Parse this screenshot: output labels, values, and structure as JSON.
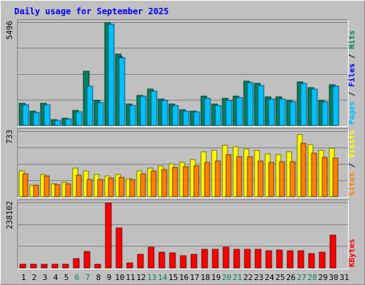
{
  "chart_data": {
    "type": "bar",
    "title": "Daily usage for September 2025",
    "days": [
      "1",
      "2",
      "3",
      "4",
      "5",
      "6",
      "7",
      "8",
      "9",
      "10",
      "11",
      "12",
      "13",
      "14",
      "15",
      "16",
      "17",
      "18",
      "19",
      "20",
      "21",
      "22",
      "23",
      "24",
      "25",
      "26",
      "27",
      "28",
      "29",
      "30",
      "31"
    ],
    "weekend_days": [
      "6",
      "7",
      "13",
      "14",
      "20",
      "21",
      "27",
      "28"
    ],
    "panels": [
      {
        "id": "hits",
        "max_label": "5496",
        "ymax": 5496,
        "series": [
          {
            "name": "Hits",
            "color": "#00805C",
            "values": [
              1180,
              760,
              1180,
              310,
              380,
              780,
              2880,
              1310,
              5460,
              3800,
              1150,
              1600,
              1920,
              1400,
              1150,
              850,
              750,
              1560,
              1140,
              1440,
              1560,
              2360,
              2230,
              1520,
              1500,
              1320,
              2300,
              2000,
              1330,
              2160,
              0
            ]
          },
          {
            "name": "Files",
            "color": "#0000FF",
            "values": [
              1080,
              700,
              1080,
              260,
              330,
              700,
              2050,
              1200,
              5400,
              3640,
              1050,
              1500,
              1800,
              1300,
              1050,
              750,
              700,
              1420,
              1020,
              1320,
              1440,
              2260,
              2120,
              1400,
              1380,
              1220,
              2200,
              1900,
              1240,
              2060,
              0
            ]
          },
          {
            "name": "Pages",
            "color": "#00C0FF",
            "values": [
              1100,
              700,
              1100,
              270,
              340,
              720,
              2080,
              1220,
              5380,
              3600,
              1060,
              1540,
              1820,
              1320,
              1060,
              760,
              730,
              1440,
              1060,
              1340,
              1480,
              2280,
              2140,
              1420,
              1400,
              1240,
              2240,
              1940,
              1260,
              2100,
              0
            ]
          }
        ]
      },
      {
        "id": "visits",
        "max_label": "733",
        "ymax": 733,
        "series": [
          {
            "name": "Visits",
            "color": "#FFFF00",
            "values": [
              285,
              130,
              250,
              140,
              160,
              320,
              285,
              245,
              235,
              245,
              200,
              285,
              320,
              345,
              365,
              380,
              415,
              500,
              520,
              575,
              560,
              535,
              520,
              480,
              470,
              500,
              690,
              585,
              520,
              545,
              0
            ]
          },
          {
            "name": "Sites",
            "color": "#FF8000",
            "values": [
              255,
              125,
              235,
              135,
              145,
              240,
              195,
              190,
              205,
              215,
              190,
              255,
              285,
              305,
              325,
              335,
              345,
              380,
              400,
              470,
              450,
              445,
              400,
              385,
              390,
              390,
              600,
              485,
              440,
              430,
              0
            ]
          }
        ]
      },
      {
        "id": "kbytes",
        "max_label": "238102",
        "ymax": 238102,
        "series": [
          {
            "name": "KBytes",
            "color": "#FF0000",
            "values": [
              12000,
              14000,
              14000,
              12000,
              14000,
              34000,
              59000,
              14000,
              235000,
              144000,
              18000,
              50000,
              76000,
              58000,
              54000,
              44000,
              50000,
              66000,
              68000,
              76000,
              66000,
              66000,
              66000,
              62000,
              64000,
              62000,
              62000,
              52000,
              58000,
              120000,
              0
            ]
          }
        ]
      }
    ],
    "legends": {
      "hits": [
        {
          "text": "Pages",
          "color": "#00C0FF"
        },
        {
          "text": " / ",
          "color": "#000000"
        },
        {
          "text": "Files",
          "color": "#0000FF"
        },
        {
          "text": " / ",
          "color": "#000000"
        },
        {
          "text": "Hits",
          "color": "#00805C"
        }
      ],
      "visits": [
        {
          "text": "Sites",
          "color": "#FF8000"
        },
        {
          "text": " / ",
          "color": "#000000"
        },
        {
          "text": "Visits",
          "color": "#FFFF00"
        }
      ],
      "kbytes": [
        {
          "text": "KBytes",
          "color": "#FF0000"
        }
      ]
    },
    "colors": {
      "background": "#C0C0C0",
      "title": "#0000FF",
      "weekday_label": "#000000",
      "weekend_label": "#00805C",
      "gridline": "#808080"
    }
  }
}
